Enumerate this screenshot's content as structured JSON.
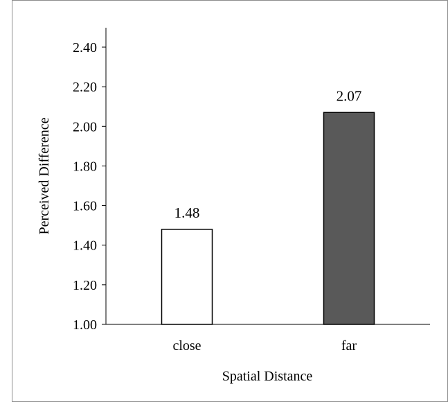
{
  "chart_data": {
    "type": "bar",
    "title": "",
    "xlabel": "Spatial Distance",
    "ylabel": "Perceived Difference",
    "categories": [
      "close",
      "far"
    ],
    "series": [
      {
        "values": [
          1.48,
          2.07
        ],
        "colors": [
          "#ffffff",
          "#595959"
        ],
        "data_labels": [
          "1.48",
          "2.07"
        ]
      }
    ],
    "ylim": [
      1.0,
      2.5
    ],
    "yticks": [
      1.0,
      1.2,
      1.4,
      1.6,
      1.8,
      2.0,
      2.2,
      2.4
    ],
    "ytick_labels": [
      "1.00",
      "1.20",
      "1.40",
      "1.60",
      "1.80",
      "2.00",
      "2.20",
      "2.40"
    ],
    "grid": false,
    "legend": "none",
    "bar_edge_color": "#000000"
  }
}
